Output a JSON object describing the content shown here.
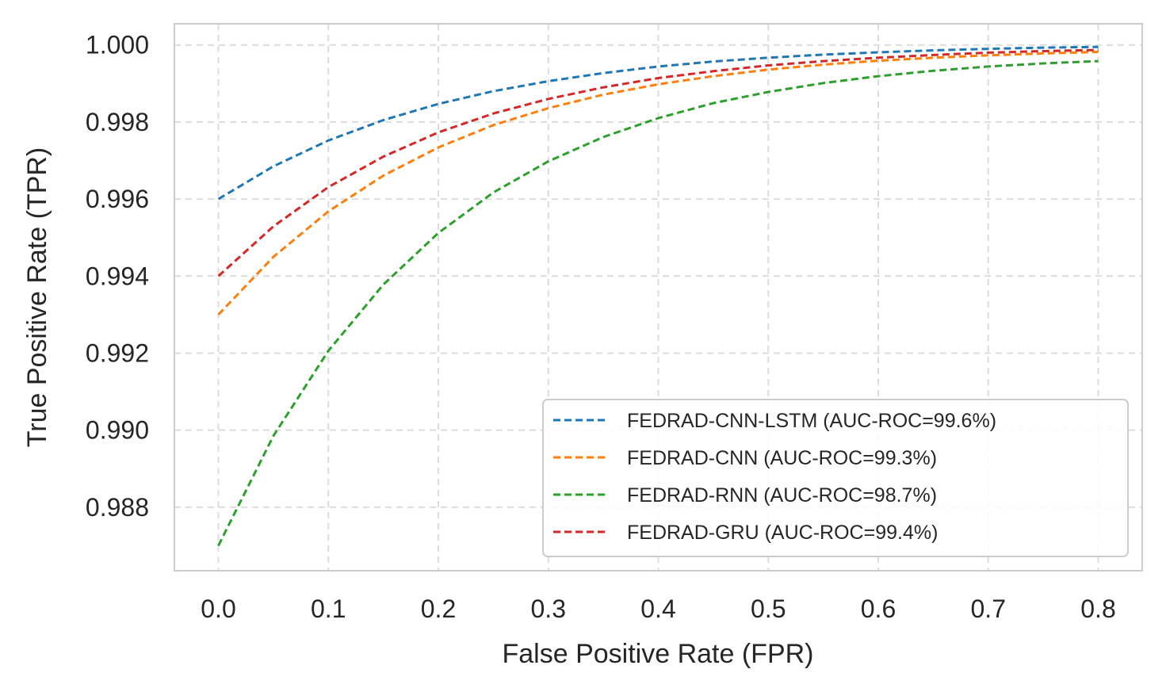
{
  "chart_data": {
    "type": "line",
    "xlabel": "False Positive Rate (FPR)",
    "ylabel": "True Positive Rate (TPR)",
    "xlim": [
      -0.04,
      0.84
    ],
    "ylim": [
      0.98635,
      1.00055
    ],
    "x_ticks": [
      "0.0",
      "0.1",
      "0.2",
      "0.3",
      "0.4",
      "0.5",
      "0.6",
      "0.7",
      "0.8"
    ],
    "x_tick_values": [
      0.0,
      0.1,
      0.2,
      0.3,
      0.4,
      0.5,
      0.6,
      0.7,
      0.8
    ],
    "y_ticks": [
      "0.988",
      "0.990",
      "0.992",
      "0.994",
      "0.996",
      "0.998",
      "1.000"
    ],
    "y_tick_values": [
      0.988,
      0.99,
      0.992,
      0.994,
      0.996,
      0.998,
      1.0
    ],
    "grid": true,
    "line_style": "dashed",
    "legend_position": "lower-right",
    "x": [
      0.0,
      0.05,
      0.1,
      0.15,
      0.2,
      0.25,
      0.3,
      0.35,
      0.4,
      0.45,
      0.5,
      0.55,
      0.6,
      0.65,
      0.7,
      0.75,
      0.8
    ],
    "series": [
      {
        "name": "FEDRAD-CNN-LSTM (AUC-ROC=99.6%)",
        "color": "#1f77b4",
        "values": [
          0.996,
          0.99685,
          0.99752,
          0.99805,
          0.99847,
          0.9988,
          0.99906,
          0.99927,
          0.99944,
          0.99957,
          0.99967,
          0.99975,
          0.99981,
          0.99986,
          0.9999,
          0.99993,
          0.99995
        ]
      },
      {
        "name": "FEDRAD-CNN (AUC-ROC=99.3%)",
        "color": "#ff7f0e",
        "values": [
          0.993,
          0.9945,
          0.99568,
          0.99661,
          0.99734,
          0.99792,
          0.99836,
          0.99871,
          0.99898,
          0.99919,
          0.99936,
          0.99949,
          0.99959,
          0.99967,
          0.99973,
          0.99978,
          0.99982
        ]
      },
      {
        "name": "FEDRAD-RNN (AUC-ROC=98.7%)",
        "color": "#2ca02c",
        "values": [
          0.987,
          0.98985,
          0.99206,
          0.99378,
          0.99512,
          0.99617,
          0.99698,
          0.99761,
          0.9981,
          0.99849,
          0.99878,
          0.99901,
          0.99919,
          0.99933,
          0.99944,
          0.99952,
          0.99958
        ]
      },
      {
        "name": "FEDRAD-GRU (AUC-ROC=99.4%)",
        "color": "#d62728",
        "values": [
          0.994,
          0.99529,
          0.99631,
          0.9971,
          0.99773,
          0.99822,
          0.9986,
          0.9989,
          0.99914,
          0.99932,
          0.99947,
          0.99958,
          0.99967,
          0.99974,
          0.9998,
          0.99984,
          0.99987
        ]
      }
    ]
  }
}
